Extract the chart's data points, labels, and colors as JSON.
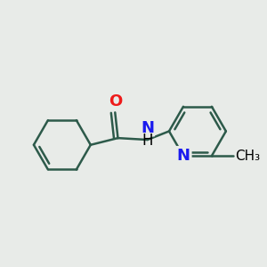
{
  "background_color": "#e8ebe8",
  "bond_color": "#2d5a4a",
  "N_color": "#1a1aee",
  "O_color": "#ee1a1a",
  "C_color": "#000000",
  "line_width": 1.8,
  "font_size": 13,
  "xlim": [
    -0.5,
    4.0
  ],
  "ylim": [
    -1.2,
    1.5
  ]
}
